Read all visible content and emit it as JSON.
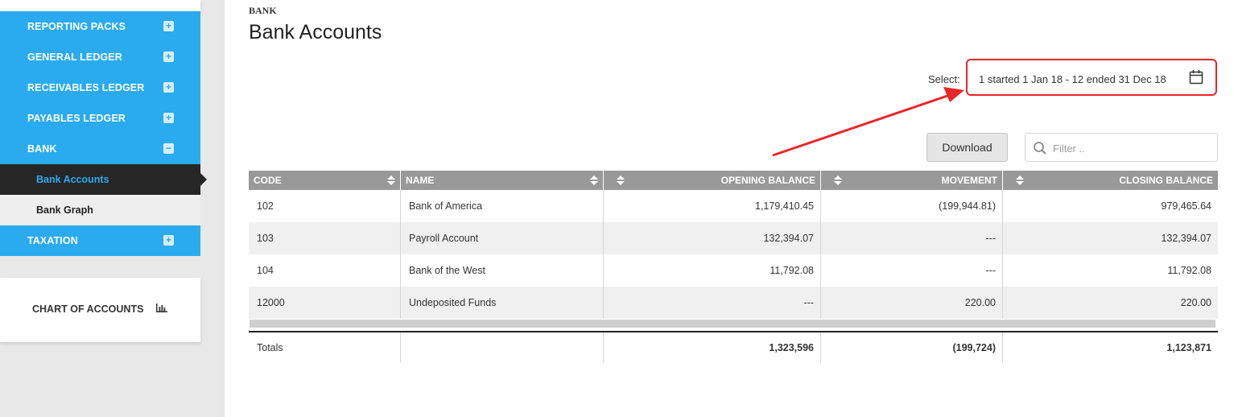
{
  "sidebar": {
    "items": [
      {
        "label": "REPORTING PACKS",
        "toggle": "+"
      },
      {
        "label": "GENERAL LEDGER",
        "toggle": "+"
      },
      {
        "label": "RECEIVABLES LEDGER",
        "toggle": "+"
      },
      {
        "label": "PAYABLES LEDGER",
        "toggle": "+"
      },
      {
        "label": "BANK",
        "toggle": "−"
      }
    ],
    "bank_sub_items": [
      {
        "label": "Bank Accounts",
        "active": true
      },
      {
        "label": "Bank Graph",
        "active": false
      }
    ],
    "taxation": {
      "label": "TAXATION",
      "toggle": "+"
    },
    "chart_of_accounts": {
      "label": "CHART OF ACCOUNTS",
      "icon": "bar-chart-icon"
    }
  },
  "header": {
    "breadcrumb": "BANK",
    "title": "Bank Accounts"
  },
  "period": {
    "label": "Select:",
    "value": "1 started 1 Jan 18 - 12 ended 31 Dec 18",
    "icon": "calendar-icon"
  },
  "toolbar": {
    "download_label": "Download",
    "filter_placeholder": "Filter .."
  },
  "colors": {
    "sidebar_accent": "#2aabf0",
    "active_bg": "#262626",
    "highlight": "#e8262a",
    "table_header": "#999999"
  },
  "table": {
    "columns": [
      "CODE",
      "NAME",
      "OPENING BALANCE",
      "MOVEMENT",
      "CLOSING BALANCE"
    ],
    "rows": [
      {
        "code": "102",
        "name": "Bank of America",
        "opening": "1,179,410.45",
        "movement": "(199,944.81)",
        "closing": "979,465.64"
      },
      {
        "code": "103",
        "name": "Payroll Account",
        "opening": "132,394.07",
        "movement": "---",
        "closing": "132,394.07"
      },
      {
        "code": "104",
        "name": "Bank of the West",
        "opening": "11,792.08",
        "movement": "---",
        "closing": "11,792.08"
      },
      {
        "code": "12000",
        "name": "Undeposited Funds",
        "opening": "---",
        "movement": "220.00",
        "closing": "220.00"
      }
    ],
    "totals": {
      "label": "Totals",
      "name": "",
      "opening": "1,323,596",
      "movement": "(199,724)",
      "closing": "1,123,871"
    }
  }
}
